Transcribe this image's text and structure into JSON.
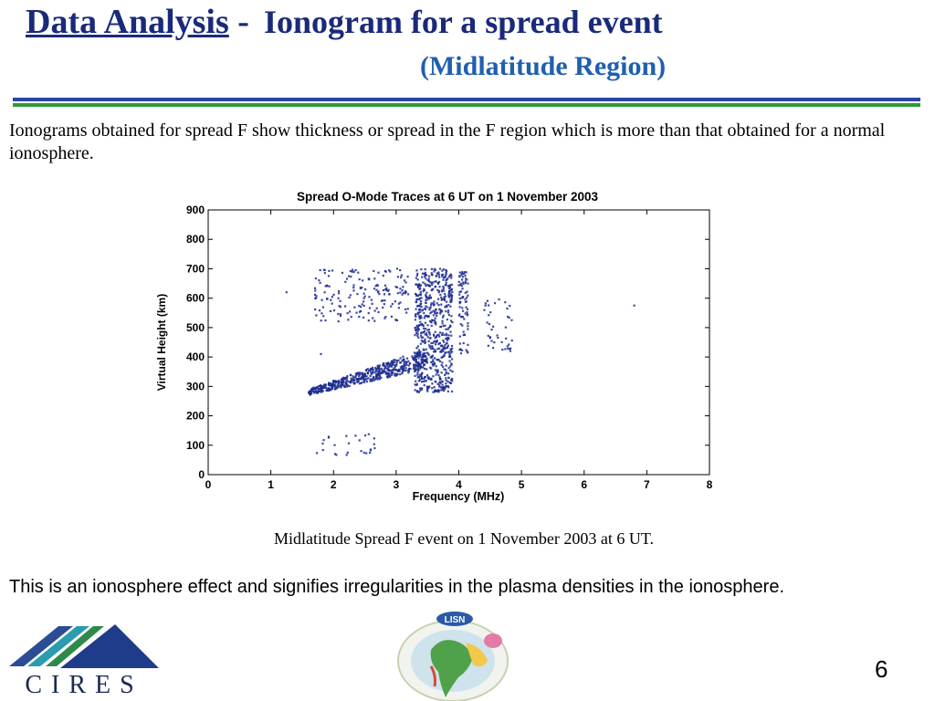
{
  "slide": {
    "title_main": "Data Analysis",
    "title_sep": " -",
    "title_sub": "Ionogram for a spread event",
    "title_region": "(Midlatitude Region)",
    "intro": "Ionograms obtained for spread F show thickness or spread in the F region which is more than that obtained for a normal ionosphere.",
    "caption": "Midlatitude Spread F event on 1 November 2003 at 6 UT.",
    "conclusion": "This is an ionosphere effect and signifies irregularities in the plasma densities in the ionosphere.",
    "page_number": "6"
  },
  "logos": {
    "cires_text": "CIRES",
    "lisn_text": "LISN"
  },
  "colors": {
    "title": "#1a2a7a",
    "subtitle": "#1f5fb0",
    "rule_blue": "#2b44a8",
    "rule_green": "#2f9a3a",
    "trace": "#1c2b8f"
  },
  "chart_data": {
    "type": "scatter",
    "title": "Spread O-Mode Traces at 6 UT on 1 November 2003",
    "xlabel": "Frequency (MHz)",
    "ylabel": "Virtual Height (km)",
    "xlim": [
      0,
      8
    ],
    "ylim": [
      0,
      900
    ],
    "xticks": [
      0,
      1,
      2,
      3,
      4,
      5,
      6,
      7,
      8
    ],
    "yticks": [
      0,
      100,
      200,
      300,
      400,
      500,
      600,
      700,
      800,
      900
    ],
    "grid": false,
    "regions": [
      {
        "desc": "lower F trace",
        "x": [
          1.6,
          3.5
        ],
        "y_start": [
          270,
          290
        ],
        "y_end": [
          360,
          430
        ]
      },
      {
        "desc": "dense spread column",
        "x": [
          3.3,
          3.9
        ],
        "y": [
          280,
          700
        ]
      },
      {
        "desc": "column near 4 MHz",
        "x": [
          4.0,
          4.15
        ],
        "y": [
          400,
          690
        ]
      },
      {
        "desc": "upper trace",
        "x": [
          1.7,
          3.2
        ],
        "y": [
          520,
          700
        ]
      },
      {
        "desc": "scattered cluster",
        "x": [
          4.4,
          4.85
        ],
        "y": [
          420,
          600
        ]
      },
      {
        "desc": "low echoes",
        "x": [
          1.7,
          2.7
        ],
        "y": [
          60,
          140
        ]
      }
    ],
    "isolated_points": [
      {
        "x": 1.25,
        "y": 620
      },
      {
        "x": 6.8,
        "y": 575
      },
      {
        "x": 1.8,
        "y": 410
      }
    ]
  }
}
